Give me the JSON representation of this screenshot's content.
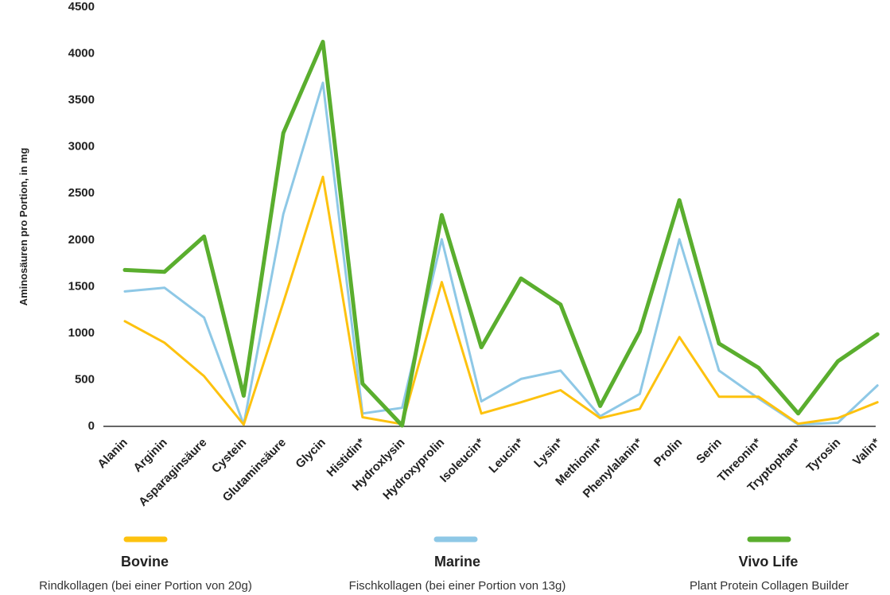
{
  "chart_data": {
    "type": "line",
    "title": "",
    "ylabel": "Aminosäuren pro Portion, in mg",
    "xlabel": "",
    "ylim": [
      0,
      4500
    ],
    "yticks": [
      0,
      500,
      1000,
      1500,
      2000,
      2500,
      3000,
      3500,
      4000,
      4500
    ],
    "grid": false,
    "legend_position": "bottom",
    "categories": [
      "Alanin",
      "Arginin",
      "Asparaginsäure",
      "Cystein",
      "Glutaminsäure",
      "Glycin",
      "Histidin*",
      "Hydroxlysin",
      "Hydroxyprolin",
      "Isoleucin*",
      "Leucin*",
      "Lysin*",
      "Methionin*",
      "Phenylalanin*",
      "Prolin",
      "Serin",
      "Threonin*",
      "Tryptophan*",
      "Tyrosin",
      "Valin*"
    ],
    "series": [
      {
        "name": "Bovine",
        "description": "Rindkollagen (bei einer Portion von 20g)",
        "color": "#FDC20F",
        "values": [
          1120,
          890,
          530,
          10,
          1320,
          2670,
          90,
          15,
          1540,
          130,
          250,
          380,
          80,
          180,
          950,
          310,
          310,
          20,
          80,
          250
        ]
      },
      {
        "name": "Marine",
        "description": "Fischkollagen (bei einer Portion von 13g)",
        "color": "#8EC8E6",
        "values": [
          1440,
          1480,
          1160,
          10,
          2270,
          3680,
          130,
          190,
          2000,
          260,
          500,
          590,
          100,
          340,
          2000,
          590,
          290,
          10,
          30,
          430
        ]
      },
      {
        "name": "Vivo Life",
        "description": "Plant Protein Collagen Builder",
        "color": "#5AAE2E",
        "values": [
          1670,
          1650,
          2030,
          320,
          3140,
          4120,
          450,
          0,
          2260,
          840,
          1580,
          1300,
          210,
          1010,
          2420,
          880,
          620,
          130,
          690,
          980
        ]
      }
    ]
  }
}
